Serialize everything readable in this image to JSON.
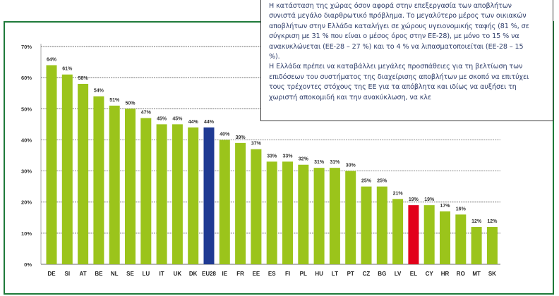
{
  "note": {
    "lines": [
      "Η κατάσταση της χώρας όσον αφορά στην επεξεργασία των αποβλήτων",
      "συνιστά μεγάλο διαρθρωτικό πρόβλημα. Το μεγαλύτερο μέρος των οικιακών",
      "αποβλήτων στην Ελλάδα καταλήγει σε χώρους υγειονομικής ταφής (81 %, σε",
      "σύγκριση με 31 % που είναι ο μέσος όρος στην ΕΕ-28), με μόνο το 15 % να",
      "ανακυκλώνεται (ΕΕ-28 – 27 %) και το 4 % να λιπασματοποιείται (ΕΕ-28 – 15",
      "%).",
      "Η Ελλάδα πρέπει να καταβάλλει μεγάλες προσπάθειες για τη βελτίωση των",
      "επιδόσεων του συστήματος της διαχείρισης αποβλήτων με σκοπό να επιτύχει",
      "τους τρέχοντες στόχους της ΕΕ για τα απόβλητα και ιδίως να αυξήσει τη",
      "χωριστή αποκομιδή και την ανακύκλωση, να κλε"
    ]
  },
  "colors": {
    "frame": "#1e7a3a",
    "bar_default": "#9bc41b",
    "bar_eu28": "#1f3a93",
    "bar_el": "#e2001a"
  },
  "chart_data": {
    "type": "bar",
    "categories": [
      "DE",
      "SI",
      "AT",
      "BE",
      "NL",
      "SE",
      "LU",
      "IT",
      "UK",
      "DK",
      "EU28",
      "IE",
      "FR",
      "EE",
      "ES",
      "FI",
      "PL",
      "HU",
      "LT",
      "PT",
      "CZ",
      "BG",
      "LV",
      "EL",
      "CY",
      "HR",
      "RO",
      "MT",
      "SK"
    ],
    "values": [
      64,
      61,
      58,
      54,
      51,
      50,
      47,
      45,
      45,
      44,
      44,
      40,
      39,
      37,
      33,
      33,
      32,
      31,
      31,
      30,
      25,
      25,
      21,
      19,
      19,
      17,
      16,
      12,
      12
    ],
    "value_labels": [
      "64%",
      "61%",
      "58%",
      "54%",
      "51%",
      "50%",
      "47%",
      "45%",
      "45%",
      "44%",
      "44%",
      "40%",
      "39%",
      "37%",
      "33%",
      "33%",
      "32%",
      "31%",
      "31%",
      "30%",
      "25%",
      "25%",
      "21%",
      "19%",
      "19%",
      "17%",
      "16%",
      "12%",
      "12%"
    ],
    "highlight": {
      "EU28": "bar_eu28",
      "EL": "bar_el"
    },
    "y_ticks": [
      "0%",
      "10%",
      "20%",
      "30%",
      "40%",
      "50%",
      "60%",
      "70%"
    ],
    "ylim": [
      0,
      70
    ],
    "grid": true
  }
}
